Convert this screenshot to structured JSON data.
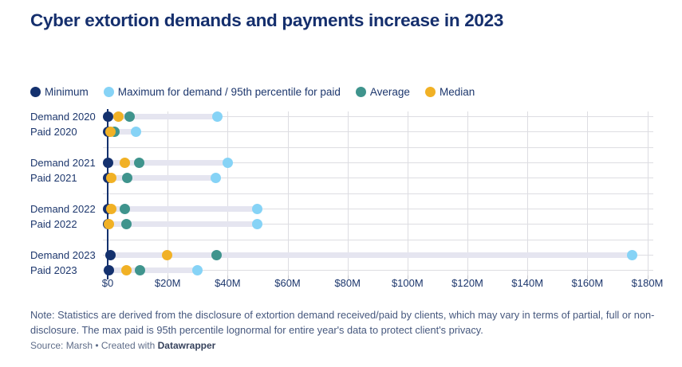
{
  "title": "Cyber extortion demands and payments increase in 2023",
  "legend": {
    "items": [
      {
        "key": "min",
        "label": "Minimum",
        "color": "#14316e"
      },
      {
        "key": "max",
        "label": "Maximum for demand / 95th percentile for paid",
        "color": "#86d3f6"
      },
      {
        "key": "average",
        "label": "Average",
        "color": "#3f948d"
      },
      {
        "key": "median",
        "label": "Median",
        "color": "#f1b125"
      }
    ]
  },
  "chart_data": {
    "type": "scatter",
    "variant": "range-dot-plot",
    "unit": "USD, millions",
    "xlim": [
      0,
      182
    ],
    "grid": "on",
    "legend_position": "top",
    "tick_values": [
      0,
      20,
      40,
      60,
      80,
      100,
      120,
      140,
      160,
      180
    ],
    "tick_labels": [
      "$0",
      "$20M",
      "$40M",
      "$60M",
      "$80M",
      "$100M",
      "$120M",
      "$140M",
      "$160M",
      "$180M"
    ],
    "series_order": [
      "min",
      "median",
      "average",
      "max"
    ],
    "rows": [
      {
        "label": "Demand 2020",
        "group": 2020,
        "min": 0,
        "median": 3.7,
        "average": 7.3,
        "max": 36.5
      },
      {
        "label": "Paid 2020",
        "group": 2020,
        "min": 0,
        "median": 1.0,
        "average": 2.2,
        "max": 9.5
      },
      {
        "label": "Demand 2021",
        "group": 2021,
        "min": 0,
        "median": 5.6,
        "average": 10.4,
        "max": 40
      },
      {
        "label": "Paid 2021",
        "group": 2021,
        "min": 0,
        "median": 1.1,
        "average": 6.5,
        "max": 36
      },
      {
        "label": "Demand 2022",
        "group": 2022,
        "min": 0,
        "median": 1.1,
        "average": 5.8,
        "max": 50
      },
      {
        "label": "Paid 2022",
        "group": 2022,
        "min": 0,
        "median": 0.4,
        "average": 6.2,
        "max": 50
      },
      {
        "label": "Demand 2023",
        "group": 2023,
        "min": 0.8,
        "median": 19.7,
        "average": 36.2,
        "max": 175
      },
      {
        "label": "Paid 2023",
        "group": 2023,
        "min": 0.5,
        "median": 6.2,
        "average": 10.7,
        "max": 30
      }
    ]
  },
  "note": "Note: Statistics are derived from the disclosure of extortion demand received/paid by clients, which may vary in terms of partial, full or non-disclosure. The max paid is 95th percentile lognormal for entire year's data to protect client's privacy.",
  "source": {
    "prefix": "Source: Marsh",
    "separator": "•",
    "created_with": "Created with",
    "brand": "Datawrapper"
  },
  "colors": {
    "minimum": "#14316e",
    "maximum": "#86d3f6",
    "average": "#3f948d",
    "median": "#f1b125",
    "range_bar": "#e5e5f0",
    "gridline": "#dddde2",
    "axis_zero": "#14316e",
    "title_text": "#152f6d",
    "label_text": "#1d376d",
    "note_text": "#46587e",
    "source_text": "#5f6d89"
  }
}
